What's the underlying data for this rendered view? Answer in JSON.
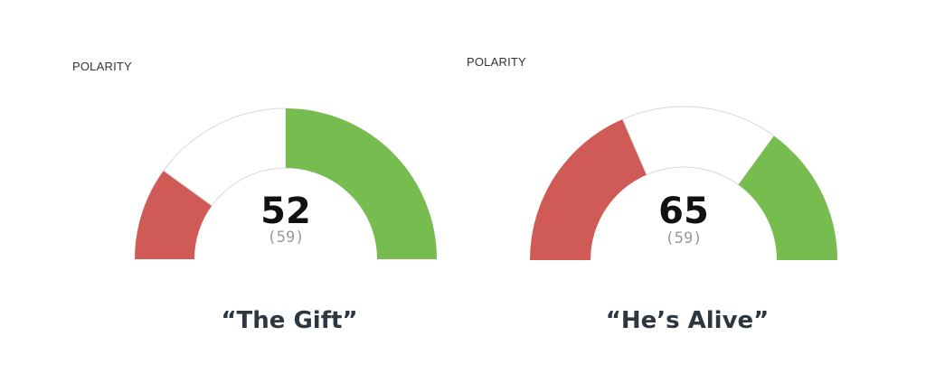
{
  "chart_data": [
    {
      "type": "gauge",
      "label": "POLARITY",
      "value": "52",
      "secondary": "(59)",
      "range": [
        0,
        100
      ],
      "segments": [
        {
          "name": "negative",
          "from": 0,
          "to": 20,
          "color": "#d05b56"
        },
        {
          "name": "neutral",
          "from": 20,
          "to": 50,
          "color": "#ffffff"
        },
        {
          "name": "positive",
          "from": 50,
          "to": 100,
          "color": "#76bc4f"
        }
      ],
      "caption": "“The Gift”"
    },
    {
      "type": "gauge",
      "label": "POLARITY",
      "value": "65",
      "secondary": "(59)",
      "range": [
        0,
        100
      ],
      "segments": [
        {
          "name": "negative",
          "from": 0,
          "to": 37,
          "color": "#d05b56"
        },
        {
          "name": "neutral",
          "from": 37,
          "to": 70,
          "color": "#ffffff"
        },
        {
          "name": "positive",
          "from": 70,
          "to": 100,
          "color": "#76bc4f"
        }
      ],
      "caption": "“He’s Alive”"
    }
  ]
}
